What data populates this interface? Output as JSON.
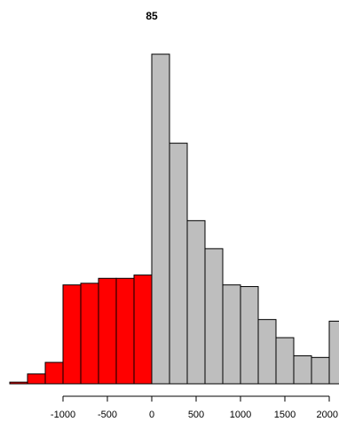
{
  "chart_data": {
    "type": "bar",
    "title": "85",
    "xlabel": "",
    "ylabel": "",
    "bin_width": 200,
    "xlim": [
      -1400,
      2100
    ],
    "ylim": [
      0,
      100
    ],
    "x_ticks": [
      -1000,
      -500,
      0,
      500,
      1000,
      1500,
      2000
    ],
    "x_tick_labels": [
      "-1000",
      "-500",
      "0",
      "500",
      "1000",
      "1500",
      "2000"
    ],
    "negative_color": "#ff0000",
    "positive_color": "#bebebe",
    "bins": [
      {
        "start": -1600,
        "end": -1400,
        "value": 0.5
      },
      {
        "start": -1400,
        "end": -1200,
        "value": 3
      },
      {
        "start": -1200,
        "end": -1000,
        "value": 6.5
      },
      {
        "start": -1000,
        "end": -800,
        "value": 30
      },
      {
        "start": -800,
        "end": -600,
        "value": 30.5
      },
      {
        "start": -600,
        "end": -400,
        "value": 32
      },
      {
        "start": -400,
        "end": -200,
        "value": 32
      },
      {
        "start": -200,
        "end": 0,
        "value": 33
      },
      {
        "start": 0,
        "end": 200,
        "value": 100
      },
      {
        "start": 200,
        "end": 400,
        "value": 73
      },
      {
        "start": 400,
        "end": 600,
        "value": 49.5
      },
      {
        "start": 600,
        "end": 800,
        "value": 41
      },
      {
        "start": 800,
        "end": 1000,
        "value": 30
      },
      {
        "start": 1000,
        "end": 1200,
        "value": 29.5
      },
      {
        "start": 1200,
        "end": 1400,
        "value": 19.5
      },
      {
        "start": 1400,
        "end": 1600,
        "value": 14
      },
      {
        "start": 1600,
        "end": 1800,
        "value": 8.5
      },
      {
        "start": 1800,
        "end": 2000,
        "value": 8
      },
      {
        "start": 2000,
        "end": 2200,
        "value": 19
      }
    ]
  }
}
